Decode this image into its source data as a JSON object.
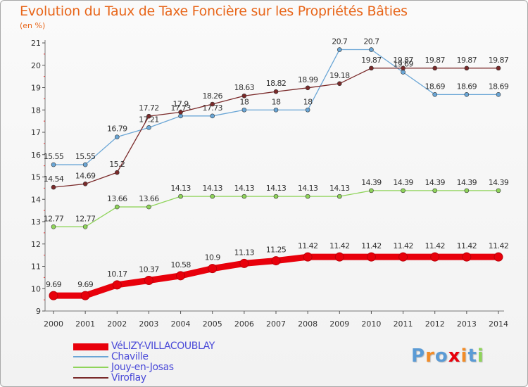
{
  "chart_data": {
    "type": "line",
    "title": "Evolution du Taux de Taxe Foncière sur les Propriétés Bâties",
    "unit_label": "(en %)",
    "xlabel": "",
    "ylabel": "",
    "x": [
      "2000",
      "2001",
      "2002",
      "2003",
      "2004",
      "2005",
      "2006",
      "2007",
      "2008",
      "2009",
      "2010",
      "2011",
      "2012",
      "2013",
      "2014"
    ],
    "ylim": [
      9,
      21
    ],
    "yticks": [
      "9",
      "10",
      "11",
      "12",
      "13",
      "14",
      "15",
      "16",
      "17",
      "18",
      "19",
      "20",
      "21"
    ],
    "grid": false,
    "series": [
      {
        "name": "VéLIZY-VILLACOUBLAY",
        "color": "#e8000b",
        "values": [
          9.69,
          9.69,
          10.17,
          10.37,
          10.58,
          10.9,
          11.13,
          11.25,
          11.42,
          11.42,
          11.42,
          11.42,
          11.42,
          11.42,
          11.42
        ],
        "labels": [
          "9.69",
          "9.69",
          "10.17",
          "10.37",
          "10.58",
          "10.9",
          "11.13",
          "11.25",
          "11.42",
          "11.42",
          "11.42",
          "11.42",
          "11.42",
          "11.42",
          "11.42"
        ]
      },
      {
        "name": "Chaville",
        "color": "#6aa6d6",
        "values": [
          15.55,
          15.55,
          16.79,
          17.21,
          17.73,
          17.73,
          18,
          18,
          18,
          20.7,
          20.7,
          19.69,
          18.69,
          18.69,
          18.69
        ],
        "labels": [
          "15.55",
          "15.55",
          "16.79",
          "17.21",
          "17.73",
          "17.73",
          "18",
          "18",
          "18",
          "20.7",
          "20.7",
          "19.69",
          "18.69",
          "18.69",
          "18.69"
        ]
      },
      {
        "name": "Jouy-en-Josas",
        "color": "#8fd45a",
        "values": [
          12.77,
          12.77,
          13.66,
          13.66,
          14.13,
          14.13,
          14.13,
          14.13,
          14.13,
          14.13,
          14.39,
          14.39,
          14.39,
          14.39,
          14.39
        ],
        "labels": [
          "12.77",
          "12.77",
          "13.66",
          "13.66",
          "14.13",
          "14.13",
          "14.13",
          "14.13",
          "14.13",
          "14.13",
          "14.39",
          "14.39",
          "14.39",
          "14.39",
          "14.39"
        ]
      },
      {
        "name": "Viroflay",
        "color": "#7a2a2a",
        "values": [
          14.54,
          14.69,
          15.2,
          17.72,
          17.9,
          18.26,
          18.63,
          18.82,
          18.99,
          19.18,
          19.87,
          19.87,
          19.87,
          19.87,
          19.87
        ],
        "labels": [
          "14.54",
          "14.69",
          "15.2",
          "17.72",
          "17.9",
          "18.26",
          "18.63",
          "18.82",
          "18.99",
          "19.18",
          "19.87",
          "19.87",
          "19.87",
          "19.87",
          "19.87"
        ]
      }
    ]
  },
  "legend": {
    "items": [
      "VéLIZY-VILLACOUBLAY",
      "Chaville",
      "Jouy-en-Josas",
      "Viroflay"
    ]
  },
  "branding": {
    "letters": [
      "P",
      "r",
      "o",
      "x",
      "i",
      "t",
      "i"
    ],
    "colors": [
      "#5b9bd5",
      "#f28c28",
      "#5b9bd5",
      "#e8000b",
      "#f28c28",
      "#5b9bd5",
      "#8fd45a"
    ]
  }
}
